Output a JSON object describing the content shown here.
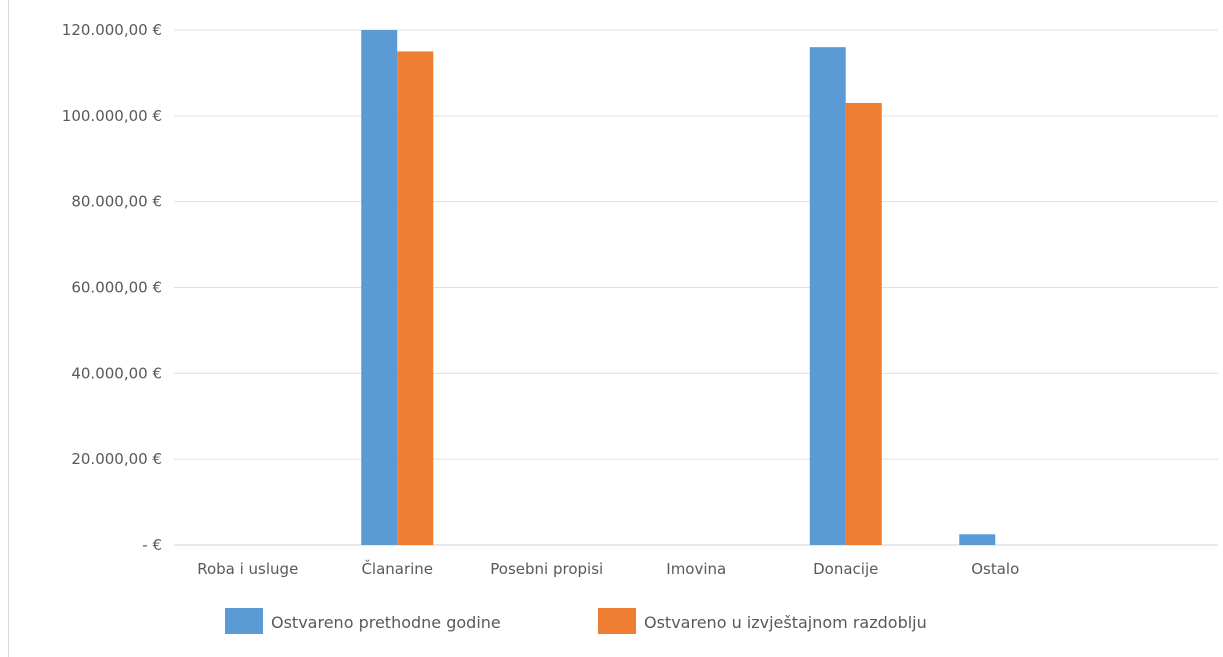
{
  "chart_data": {
    "type": "bar",
    "categories": [
      "Roba i usluge",
      "Članarine",
      "Posebni propisi",
      "Imovina",
      "Donacije",
      "Ostalo"
    ],
    "series": [
      {
        "name": "Ostvareno prethodne godine",
        "color": "#5B9BD5",
        "values": [
          0,
          120000,
          0,
          0,
          116000,
          2500
        ]
      },
      {
        "name": "Ostvareno u izvještajnom razdoblju",
        "color": "#ED7D31",
        "values": [
          0,
          115000,
          0,
          0,
          103000,
          0
        ]
      }
    ],
    "yticks": [
      0,
      20000,
      40000,
      60000,
      80000,
      100000,
      120000
    ],
    "ytick_labels": [
      "-  €",
      "20.000,00 €",
      "40.000,00 €",
      "60.000,00 €",
      "80.000,00 €",
      "100.000,00 €",
      "120.000,00 €"
    ],
    "ylim": [
      0,
      120000
    ],
    "grid": true,
    "legend_position": "bottom",
    "title": "",
    "xlabel": "",
    "ylabel": ""
  }
}
